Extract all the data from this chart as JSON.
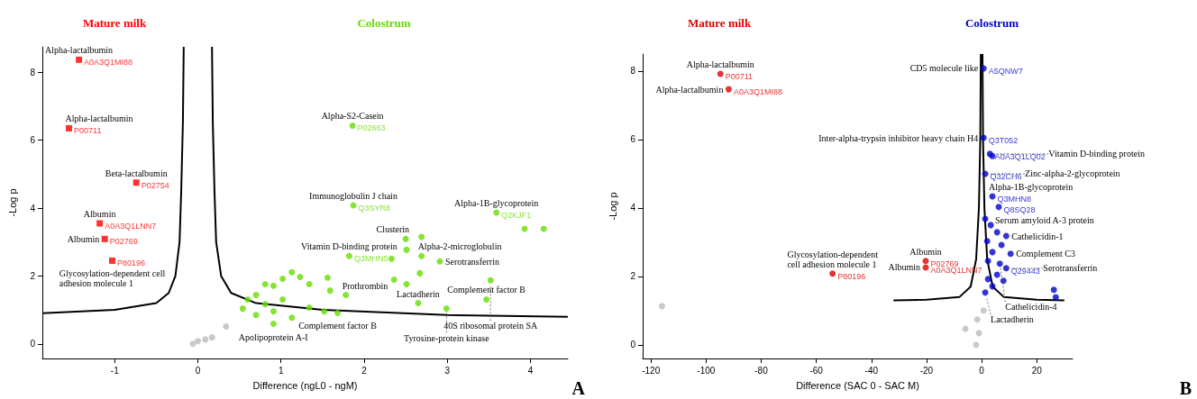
{
  "chart_data": [
    {
      "type": "scatter",
      "xlabel": "Difference (ngL0 - ngM)",
      "ylabel": "-Log p",
      "xlim": [
        -1.87,
        4.45
      ],
      "ylim": [
        -0.43,
        8.75
      ],
      "xticks": [
        -1,
        0,
        1,
        2,
        3,
        4
      ],
      "yticks": [
        0,
        2,
        4,
        6,
        8
      ],
      "marker": "circle",
      "legend": "top",
      "series": [
        {
          "name": "Mature milk",
          "color": "#ff0000",
          "marker": "square",
          "x": [
            -1.43,
            -1.55,
            -0.74,
            -1.18,
            -1.12,
            -1.03
          ],
          "values": [
            8.37,
            6.35,
            4.75,
            3.55,
            3.09,
            2.45
          ],
          "value_labels": [
            "A0A3Q1MI88",
            "P00711",
            "P02754",
            "A0A3Q1LNN7",
            "P02769",
            "P80196"
          ]
        },
        {
          "name": "Colostrum",
          "color": "#66dd00",
          "x": [
            1.86,
            1.87,
            3.59,
            3.93,
            4.16,
            2.5,
            2.69,
            2.51,
            2.69,
            2.33,
            2.91,
            2.67,
            2.36,
            2.51,
            3.52,
            3.47,
            2.99,
            2.65,
            1.82,
            1.56,
            1.59,
            1.78,
            1.52,
            1.68,
            1.13,
            1.23,
            1.02,
            1.34,
            0.91,
            0.81,
            0.7,
            0.6,
            0.81,
            0.91,
            0.7,
            1.13,
            0.91,
            1.34,
            1.02,
            0.54
          ],
          "values": [
            6.43,
            4.08,
            3.87,
            3.39,
            3.39,
            3.09,
            3.15,
            2.77,
            2.59,
            2.51,
            2.43,
            2.08,
            1.89,
            1.76,
            1.87,
            1.31,
            1.04,
            1.2,
            2.59,
            1.95,
            1.57,
            1.44,
            0.96,
            0.91,
            2.11,
            1.97,
            1.92,
            1.76,
            1.71,
            1.76,
            1.44,
            1.31,
            1.17,
            0.96,
            0.85,
            0.77,
            0.59,
            1.07,
            1.31,
            1.04
          ],
          "value_labels": [
            "P02663",
            "Q3SYR8",
            "Q2KJF1",
            null,
            null,
            null,
            null,
            null,
            null,
            null,
            null,
            null,
            null,
            null,
            null,
            null,
            null,
            null,
            "Q3MHN5",
            null,
            null,
            null,
            null,
            null,
            null,
            null,
            null,
            null,
            null,
            null,
            null,
            null,
            null,
            null,
            null,
            null,
            null,
            null,
            null,
            null
          ]
        },
        {
          "color": "#bbbbbb",
          "x": [
            -0.06,
            0,
            0.09,
            0.17,
            0.34
          ],
          "values": [
            0,
            0.08,
            0.13,
            0.19,
            0.51
          ]
        },
        {
          "type": "line",
          "color": "#000000",
          "marker": "none",
          "x": [
            -1.87,
            -1,
            -0.5,
            -0.35,
            -0.27,
            -0.22,
            -0.2,
            -0.18,
            -0.17
          ],
          "values": [
            0.9,
            1,
            1.2,
            1.5,
            2,
            3,
            4.5,
            6.5,
            8.75
          ]
        },
        {
          "type": "line",
          "color": "#000000",
          "marker": "none",
          "x": [
            0.17,
            0.18,
            0.2,
            0.22,
            0.28,
            0.4,
            0.7,
            1.5,
            3,
            4.45
          ],
          "values": [
            8.75,
            6.5,
            4.5,
            3,
            2,
            1.5,
            1.2,
            1,
            0.85,
            0.8
          ]
        }
      ],
      "annotations": [
        {
          "text": "Alpha-lactalbumin",
          "x": -1.43,
          "y": 8.37
        },
        {
          "text": "Alpha-lactalbumin",
          "x": -1.55,
          "y": 6.35
        },
        {
          "text": "Beta-lactalbumin",
          "x": -0.74,
          "y": 4.75
        },
        {
          "text": "Albumin",
          "x": -1.18,
          "y": 3.55
        },
        {
          "text": "Albumin",
          "x": -1.12,
          "y": 3.09
        },
        {
          "text": "Glycosylation-dependent cell\nadhesion molecule 1",
          "x": -1.03,
          "y": 2.45
        },
        {
          "text": "Alpha-S2-Casein",
          "x": 1.86,
          "y": 6.43
        },
        {
          "text": "Immunoglobulin J chain",
          "x": 1.87,
          "y": 4.08
        },
        {
          "text": "Alpha-1B-glycoprotein",
          "x": 3.59,
          "y": 3.87
        },
        {
          "text": "Vitamin D-binding protein",
          "x": 1.82,
          "y": 2.59
        },
        {
          "text": "Clusterin",
          "x": 2.5,
          "y": 3.09
        },
        {
          "text": "Alpha-2-microglobulin",
          "x": 2.69,
          "y": 2.59
        },
        {
          "text": "Serotransferrin",
          "x": 2.91,
          "y": 2.43
        },
        {
          "text": "40S ribosomal protein SA",
          "x": 3.52,
          "y": 1.87
        },
        {
          "text": "Lactadherin",
          "x": 2.65,
          "y": 1.2
        },
        {
          "text": "Prothrombin",
          "x": 1.78,
          "y": 1.44
        },
        {
          "text": "Complement factor B",
          "x": 3.47,
          "y": 1.31
        },
        {
          "text": "Complement factor B",
          "x": 1.68,
          "y": 0.91
        },
        {
          "text": "Tyrosine-protein kinase",
          "x": 2.99,
          "y": 1.04
        },
        {
          "text": "Apolipoprotein A-I",
          "x": 0.91,
          "y": 0.59
        },
        "A"
      ]
    },
    {
      "type": "scatter",
      "xlabel": "Difference (SAC 0 - SAC M)",
      "ylabel": "-Log p",
      "xlim": [
        -123,
        33
      ],
      "ylim": [
        -0.4,
        8.5
      ],
      "xticks": [
        -120,
        -100,
        -80,
        -60,
        -40,
        -20,
        0,
        20
      ],
      "yticks": [
        0,
        2,
        4,
        6,
        8
      ],
      "marker": "circle",
      "legend": "top",
      "series": [
        {
          "name": "Mature milk",
          "color": "#dd0000",
          "x": [
            -94.8,
            -91.8,
            -54.1,
            -20.3,
            -20.3
          ],
          "values": [
            7.92,
            7.47,
            2.08,
            2.45,
            2.26
          ],
          "value_labels": [
            "P00711",
            "A0A3Q1MI88",
            "P80196",
            "P02769",
            "A0A3Q1LNN7"
          ]
        },
        {
          "name": "Colostrum",
          "color": "#0000cc",
          "x": [
            0.7,
            0.7,
            3,
            3.9,
            1.3,
            3.9,
            6.2,
            1.3,
            3.3,
            5.6,
            8.9,
            2,
            7.2,
            3.9,
            10.5,
            2.3,
            6.6,
            8.9,
            5.6,
            2.3,
            7.9,
            3.9,
            1.3,
            26.2,
            26.9
          ],
          "values": [
            8.08,
            6.05,
            5.58,
            5.52,
            5,
            4.34,
            4.03,
            3.68,
            3.5,
            3.29,
            3.18,
            3.03,
            2.92,
            2.71,
            2.66,
            2.45,
            2.37,
            2.24,
            2.05,
            1.92,
            1.87,
            1.71,
            1.53,
            1.61,
            1.39
          ],
          "value_labels": [
            "A5QNW7",
            "Q3T052",
            "A0A3Q1LQ02",
            null,
            "Q32CH6",
            "Q3MHN8",
            "Q8SQ28",
            null,
            null,
            null,
            null,
            null,
            null,
            null,
            null,
            null,
            null,
            "Q29443",
            null,
            null,
            null,
            null,
            null,
            null,
            null
          ]
        },
        {
          "color": "#bbbbbb",
          "x": [
            -116,
            -5.9,
            -1.6,
            -1,
            0.7,
            -2
          ],
          "values": [
            1.13,
            0.47,
            0.74,
            0.34,
            1,
            0
          ]
        },
        {
          "type": "line",
          "color": "#000000",
          "marker": "none",
          "x": [
            -32,
            -20,
            -8,
            -4,
            -2,
            -1,
            -0.5,
            -0.3
          ],
          "values": [
            1.3,
            1.32,
            1.4,
            1.7,
            2.5,
            4,
            6,
            8.5
          ]
        },
        {
          "type": "line",
          "color": "#000000",
          "marker": "none",
          "x": [
            0.3,
            0.5,
            1,
            2,
            4,
            8,
            20,
            30
          ],
          "values": [
            8.5,
            6,
            4,
            2.5,
            1.7,
            1.4,
            1.32,
            1.3
          ]
        }
      ],
      "annotations": [
        {
          "text": "Alpha-lactalbumin",
          "x": -94.8,
          "y": 7.92
        },
        {
          "text": "Alpha-lactalbumin",
          "x": -91.8,
          "y": 7.47
        },
        {
          "text": "Glycosylation-dependent\ncell adhesion molecule 1",
          "x": -54.1,
          "y": 2.08
        },
        {
          "text": "Albumin",
          "x": -20.3,
          "y": 2.45
        },
        {
          "text": "Albumin",
          "x": -20.3,
          "y": 2.26
        },
        {
          "text": "CD5 molecule like",
          "x": 0.7,
          "y": 8.08
        },
        {
          "text": "Inter-alpha-trypsin inhibitor heavy chain H4",
          "x": 0.7,
          "y": 6.05
        },
        {
          "text": "Vitamin D-binding protein",
          "x": 3,
          "y": 5.58
        },
        {
          "text": "Zinc-alpha-2-glycoprotein",
          "x": 1.3,
          "y": 5
        },
        {
          "text": "Alpha-1B-glycoprotein",
          "x": 3.9,
          "y": 4.34
        },
        {
          "text": "Serum amyloid A-3 protein",
          "x": 6.2,
          "y": 4.03
        },
        {
          "text": "Cathelicidin-1",
          "x": 8.9,
          "y": 3.18
        },
        {
          "text": "Complement C3",
          "x": 10.5,
          "y": 2.66
        },
        {
          "text": "Cathelicidin-4",
          "x": 6.6,
          "y": 2.37
        },
        {
          "text": "Serotransferrin",
          "x": 8.9,
          "y": 2.24
        },
        {
          "text": "Lactadherin",
          "x": 1.3,
          "y": 1.53
        },
        "B"
      ]
    }
  ]
}
